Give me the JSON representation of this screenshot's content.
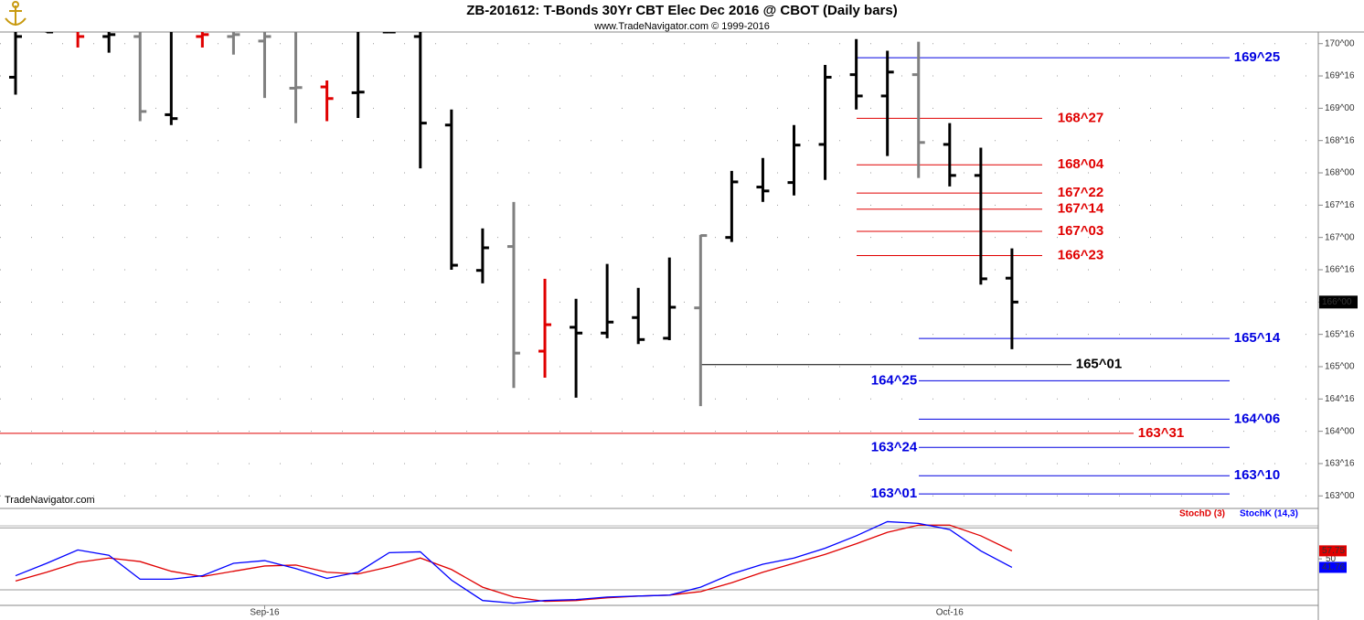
{
  "chart_data": [
    {
      "type": "ohlc",
      "title": "ZB-201612:  T-Bonds 30Yr CBT Elec Dec 2016 @ CBOT  (Daily bars)",
      "subtitle": "www.TradeNavigator.com © 1999-2016",
      "watermark": "TradeNavigator.com",
      "categories": [
        null,
        null,
        null,
        null,
        null,
        null,
        null,
        null,
        "Sep-16",
        null,
        null,
        null,
        null,
        null,
        null,
        null,
        null,
        null,
        null,
        null,
        null,
        null,
        null,
        null,
        null,
        null,
        null,
        null,
        null,
        null,
        "Oct-16",
        null,
        null
      ],
      "open": [
        169.48,
        170.2,
        170.2,
        170.11,
        170.11,
        168.9,
        170.11,
        170.11,
        170.04,
        169.31,
        169.33,
        169.24,
        170.18,
        170.11,
        168.74,
        166.49,
        166.86,
        165.24,
        165.61,
        165.52,
        165.76,
        165.44,
        165.91,
        167.0,
        167.78,
        167.85,
        168.44,
        169.52,
        169.19,
        169.52,
        168.44,
        167.96,
        166.37
      ],
      "high": [
        170.4,
        170.4,
        170.4,
        170.4,
        170.4,
        170.4,
        170.4,
        170.4,
        170.4,
        170.4,
        169.43,
        170.4,
        170.4,
        170.4,
        168.98,
        167.14,
        167.55,
        166.36,
        166.05,
        166.59,
        166.22,
        166.69,
        167.04,
        168.03,
        168.23,
        168.74,
        169.67,
        170.07,
        169.89,
        170.03,
        168.77,
        168.39,
        166.83
      ],
      "low": [
        169.21,
        170.17,
        169.94,
        169.86,
        168.8,
        168.74,
        169.94,
        169.83,
        169.16,
        168.77,
        168.8,
        168.85,
        170.17,
        168.07,
        166.5,
        166.29,
        164.67,
        164.83,
        164.52,
        165.44,
        165.35,
        165.41,
        164.39,
        166.93,
        167.55,
        167.65,
        167.89,
        168.98,
        168.26,
        167.92,
        167.79,
        166.27,
        165.27
      ],
      "close": [
        170.11,
        170.18,
        170.11,
        170.14,
        168.95,
        168.84,
        170.14,
        170.14,
        170.11,
        169.32,
        169.15,
        169.25,
        170.18,
        168.77,
        166.57,
        166.84,
        165.21,
        165.65,
        165.52,
        165.69,
        165.42,
        165.92,
        167.03,
        167.86,
        167.72,
        168.43,
        169.48,
        169.19,
        169.56,
        168.47,
        167.96,
        166.36,
        166.0
      ],
      "bar_colors": [
        "#000000",
        "#000000",
        "#e00000",
        "#000000",
        "#808080",
        "#000000",
        "#e00000",
        "#808080",
        "#808080",
        "#808080",
        "#e00000",
        "#000000",
        "#000000",
        "#000000",
        "#000000",
        "#000000",
        "#808080",
        "#e00000",
        "#000000",
        "#000000",
        "#000000",
        "#000000",
        "#808080",
        "#000000",
        "#000000",
        "#000000",
        "#000000",
        "#000000",
        "#000000",
        "#808080",
        "#000000",
        "#000000",
        "#000000"
      ],
      "ylim": [
        162.82,
        170.18
      ],
      "yticks": [
        {
          "value": 170,
          "label": "170^00"
        },
        {
          "value": 169.5,
          "label": "169^16"
        },
        {
          "value": 169,
          "label": "169^00"
        },
        {
          "value": 168.5,
          "label": "168^16"
        },
        {
          "value": 168,
          "label": "168^00"
        },
        {
          "value": 167.5,
          "label": "167^16"
        },
        {
          "value": 167,
          "label": "167^00"
        },
        {
          "value": 166.5,
          "label": "166^16"
        },
        {
          "value": 166,
          "label": "166^00"
        },
        {
          "value": 165.5,
          "label": "165^16"
        },
        {
          "value": 165,
          "label": "165^00"
        },
        {
          "value": 164.5,
          "label": "164^16"
        },
        {
          "value": 164,
          "label": "164^00"
        },
        {
          "value": 163.5,
          "label": "163^16"
        },
        {
          "value": 163,
          "label": "163^00"
        }
      ],
      "grid": true,
      "levels": [
        {
          "value": 169.78125,
          "label": "169^25",
          "color": "#0000e0"
        },
        {
          "value": 168.84375,
          "label": "168^27",
          "color": "#e00000"
        },
        {
          "value": 168.125,
          "label": "168^04",
          "color": "#e00000"
        },
        {
          "value": 167.6875,
          "label": "167^22",
          "color": "#e00000"
        },
        {
          "value": 167.4375,
          "label": "167^14",
          "color": "#e00000"
        },
        {
          "value": 167.09375,
          "label": "167^03",
          "color": "#e00000"
        },
        {
          "value": 166.71875,
          "label": "166^23",
          "color": "#e00000"
        },
        {
          "value": 165.4375,
          "label": "165^14",
          "color": "#0000e0"
        },
        {
          "value": 165.03125,
          "label": "165^01",
          "color": "#000000"
        },
        {
          "value": 164.78125,
          "label": "164^25",
          "color": "#0000e0"
        },
        {
          "value": 164.1875,
          "label": "164^06",
          "color": "#0000e0"
        },
        {
          "value": 163.96875,
          "label": "163^31",
          "color": "#e00000"
        },
        {
          "value": 163.75,
          "label": "163^24",
          "color": "#0000e0"
        },
        {
          "value": 163.3125,
          "label": "163^10",
          "color": "#0000e0"
        },
        {
          "value": 163.03125,
          "label": "163^01",
          "color": "#0000e0"
        }
      ],
      "last_price": {
        "value": 166,
        "label": "166^00"
      }
    },
    {
      "type": "line",
      "series": [
        {
          "name": "StochD (3)",
          "color": "#e00000",
          "values": [
            28.6,
            37.1,
            46.6,
            50.8,
            47.4,
            38.0,
            32.9,
            38.0,
            43.1,
            44.0,
            37.1,
            35.4,
            42.3,
            50.8,
            39.7,
            22.6,
            13.1,
            8.9,
            9.7,
            12.3,
            14.0,
            14.9,
            18.3,
            26.9,
            37.1,
            45.7,
            54.3,
            64.6,
            75.7,
            82.6,
            82.6,
            72.3,
            57.75
          ]
        },
        {
          "name": "StochK (14,3)",
          "color": "#0000ff",
          "values": [
            33.7,
            45.7,
            58.6,
            53.4,
            30.3,
            30.3,
            33.7,
            45.7,
            48.3,
            40.6,
            31.1,
            37.1,
            56.0,
            56.8,
            29.4,
            9.7,
            7.1,
            9.7,
            10.6,
            13.1,
            14.0,
            14.9,
            22.6,
            35.4,
            44.8,
            50.8,
            60.3,
            72.3,
            86.0,
            84.3,
            78.3,
            57.7,
            41.76
          ]
        }
      ],
      "ylim": [
        5,
        97
      ],
      "yticks": [
        50
      ],
      "hlines": [
        80,
        20
      ]
    }
  ]
}
